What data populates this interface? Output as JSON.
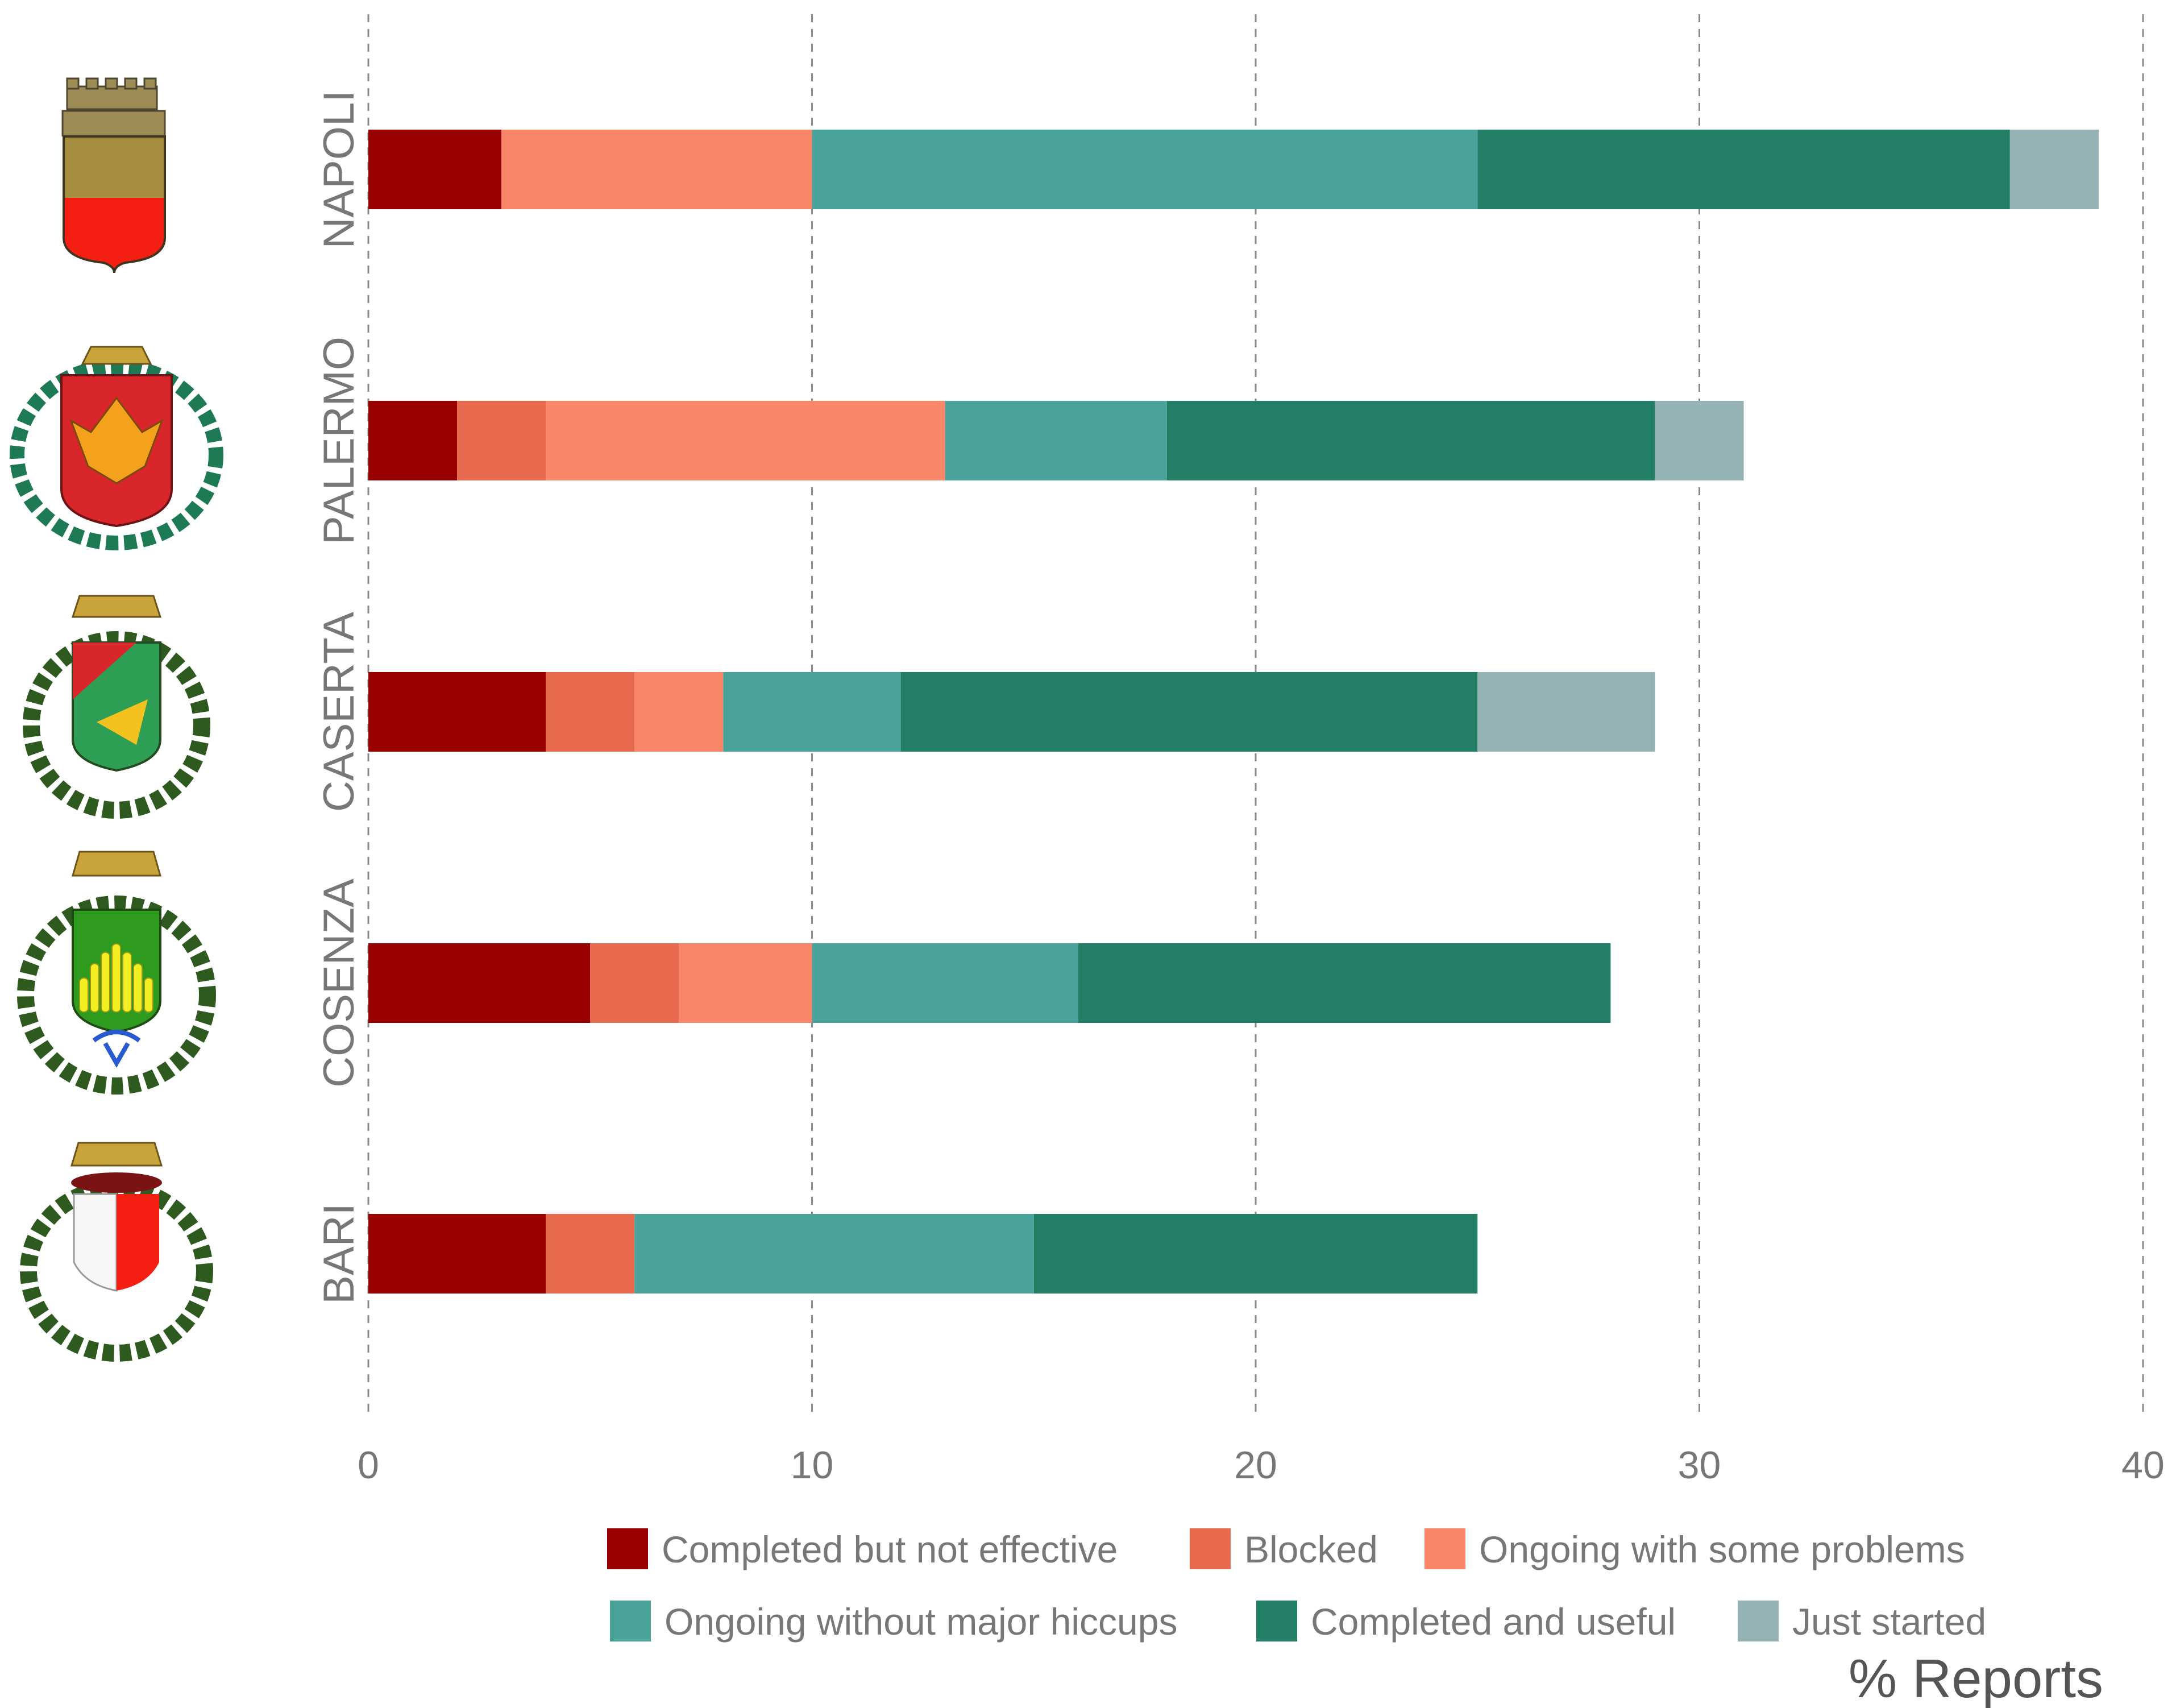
{
  "chart_data": {
    "type": "bar",
    "orientation": "horizontal",
    "stacked": true,
    "categories": [
      "NAPOLI",
      "PALERMO",
      "CASERTA",
      "COSENZA",
      "BARI"
    ],
    "series": [
      {
        "name": "Completed but not effective",
        "color": "#990000",
        "values": [
          3,
          2,
          4,
          5,
          4
        ]
      },
      {
        "name": "Blocked",
        "color": "#E76A4E",
        "values": [
          0,
          2,
          2,
          2,
          2
        ]
      },
      {
        "name": "Ongoing with some problems",
        "color": "#FA8669",
        "values": [
          7,
          9,
          2,
          3,
          0
        ]
      },
      {
        "name": "Ongoing without major hiccups",
        "color": "#4AA39A",
        "values": [
          15,
          5,
          4,
          6,
          9
        ]
      },
      {
        "name": "Completed and useful",
        "color": "#227F66",
        "values": [
          12,
          11,
          13,
          12,
          10
        ]
      },
      {
        "name": "Just started",
        "color": "#95B2B5",
        "values": [
          2,
          2,
          4,
          0,
          0
        ]
      }
    ],
    "xlabel": "% Reports",
    "xlim": [
      0,
      40
    ],
    "xticks": [
      "0",
      "10",
      "20",
      "30",
      "40"
    ],
    "grid": true,
    "legend_position": "bottom-right",
    "category_emblems": [
      "coat-of-arms-napoli",
      "coat-of-arms-palermo",
      "coat-of-arms-caserta",
      "coat-of-arms-cosenza",
      "coat-of-arms-bari"
    ]
  }
}
